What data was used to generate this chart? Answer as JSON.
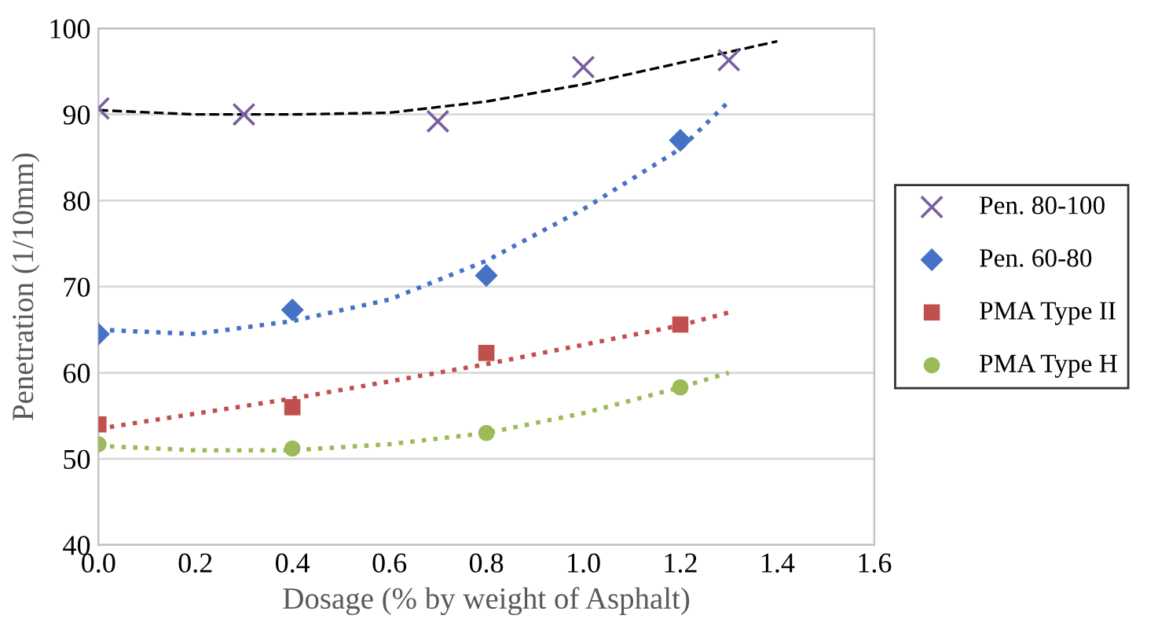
{
  "chart_data": {
    "type": "scatter",
    "xlabel": "Dosage (% by weight of Asphalt)",
    "ylabel": "Penetration (1/10mm)",
    "xlim": [
      0,
      1.6
    ],
    "ylim": [
      40,
      100
    ],
    "xticks": [
      {
        "value": 0,
        "label": "0.0"
      },
      {
        "value": 0.2,
        "label": "0.2"
      },
      {
        "value": 0.4,
        "label": "0.4"
      },
      {
        "value": 0.6,
        "label": "0.6"
      },
      {
        "value": 0.8,
        "label": "0.8"
      },
      {
        "value": 1,
        "label": "1.0"
      },
      {
        "value": 1.2,
        "label": "1.2"
      },
      {
        "value": 1.4,
        "label": "1.4"
      },
      {
        "value": 1.6,
        "label": "1.6"
      }
    ],
    "yticks": [
      40,
      50,
      60,
      70,
      80,
      90,
      100
    ],
    "grid": "y",
    "legend": "right",
    "series": [
      {
        "type": "line",
        "color": "#000000",
        "line_style": "dashed",
        "marker": "none",
        "x": [
          0,
          0.2,
          0.4,
          0.6,
          0.8,
          1.0,
          1.2,
          1.4
        ],
        "values": [
          90.5,
          90,
          90,
          90.2,
          91.5,
          93.5,
          96,
          98.5
        ]
      },
      {
        "type": "line",
        "color": "#4472c4",
        "line_style": "dotted",
        "marker": "none",
        "x": [
          0,
          0.2,
          0.4,
          0.6,
          0.8,
          1.0,
          1.2,
          1.3
        ],
        "values": [
          65,
          64.5,
          66,
          68.5,
          73,
          79,
          86,
          91.5
        ]
      },
      {
        "type": "line",
        "color": "#c0504d",
        "line_style": "dotted",
        "marker": "none",
        "x": [
          0,
          0.4,
          0.8,
          1.2,
          1.3
        ],
        "values": [
          53.5,
          57,
          61,
          65.5,
          67
        ]
      },
      {
        "type": "line",
        "color": "#9bbb59",
        "line_style": "dotted",
        "marker": "none",
        "x": [
          0,
          0.2,
          0.4,
          0.6,
          0.8,
          1.0,
          1.2,
          1.3
        ],
        "values": [
          51.5,
          51,
          51,
          51.7,
          53,
          55.3,
          58.3,
          60
        ]
      },
      {
        "name": "Pen. 80-100",
        "color": "#7a5fa0",
        "marker": "cross",
        "x": [
          0,
          0.3,
          0.7,
          1.0,
          1.3
        ],
        "values": [
          90.7,
          90,
          89.2,
          95.5,
          96.3
        ]
      },
      {
        "name": "Pen. 60-80",
        "color": "#4472c4",
        "marker": "diamond",
        "x": [
          0,
          0.4,
          0.8,
          1.2
        ],
        "values": [
          64.5,
          67.3,
          71.3,
          87
        ]
      },
      {
        "name": "PMA Type II",
        "color": "#c0504d",
        "marker": "square",
        "x": [
          0,
          0.4,
          0.8,
          1.2
        ],
        "values": [
          54,
          56,
          62.3,
          65.6
        ]
      },
      {
        "name": "PMA Type H",
        "color": "#9bbb59",
        "marker": "circle",
        "x": [
          0,
          0.4,
          0.8,
          1.2
        ],
        "values": [
          51.7,
          51.2,
          53,
          58.3
        ]
      }
    ]
  }
}
